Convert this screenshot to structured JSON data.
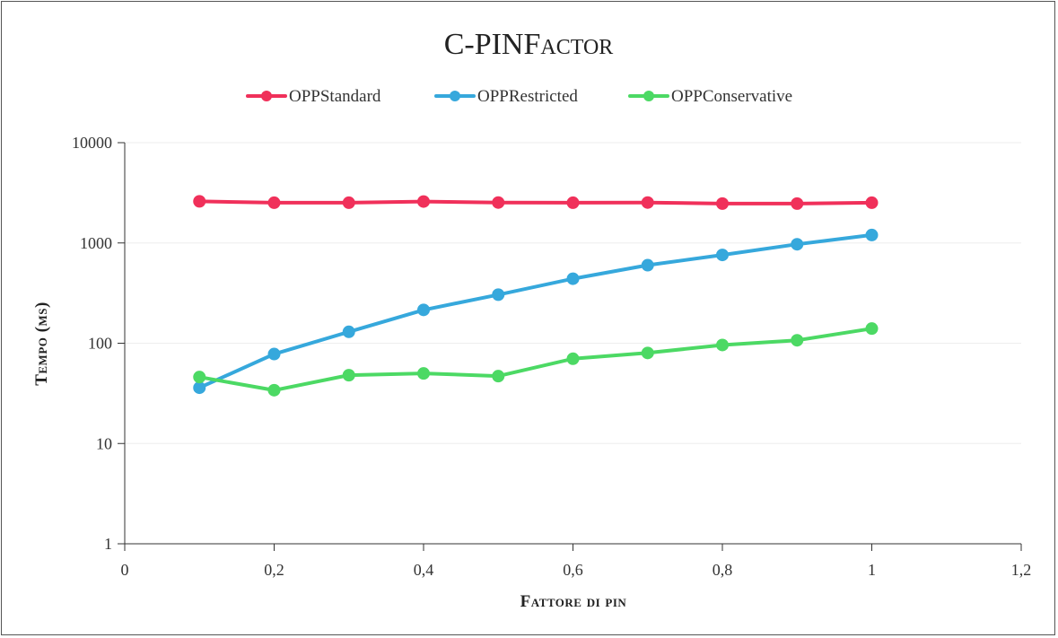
{
  "chart_data": {
    "type": "line",
    "title": "C-PINFactor",
    "xlabel": "Fattore di pin",
    "ylabel": "Tempo (ms)",
    "y_scale": "log",
    "ylim": [
      1,
      10000
    ],
    "xlim": [
      0,
      1.2
    ],
    "x_ticks": [
      "0",
      "0,2",
      "0,4",
      "0,6",
      "0,8",
      "1",
      "1,2"
    ],
    "x_tick_values": [
      0,
      0.2,
      0.4,
      0.6,
      0.8,
      1.0,
      1.2
    ],
    "y_ticks": [
      "1",
      "10",
      "100",
      "1000",
      "10000"
    ],
    "y_tick_values": [
      1,
      10,
      100,
      1000,
      10000
    ],
    "legend_position": "top",
    "grid": "horizontal",
    "x": [
      0.1,
      0.2,
      0.3,
      0.4,
      0.5,
      0.6,
      0.7,
      0.8,
      0.9,
      1.0
    ],
    "series": [
      {
        "name": "OPPStandard",
        "color": "#f0305a",
        "values": [
          2600,
          2520,
          2520,
          2590,
          2530,
          2520,
          2530,
          2470,
          2470,
          2520
        ]
      },
      {
        "name": "OPPRestricted",
        "color": "#36a8dc",
        "values": [
          36,
          78,
          130,
          215,
          305,
          440,
          600,
          760,
          970,
          1200
        ]
      },
      {
        "name": "OPPConservative",
        "color": "#4cd964",
        "values": [
          46,
          34,
          48,
          50,
          47,
          70,
          80,
          96,
          107,
          140
        ]
      }
    ]
  }
}
